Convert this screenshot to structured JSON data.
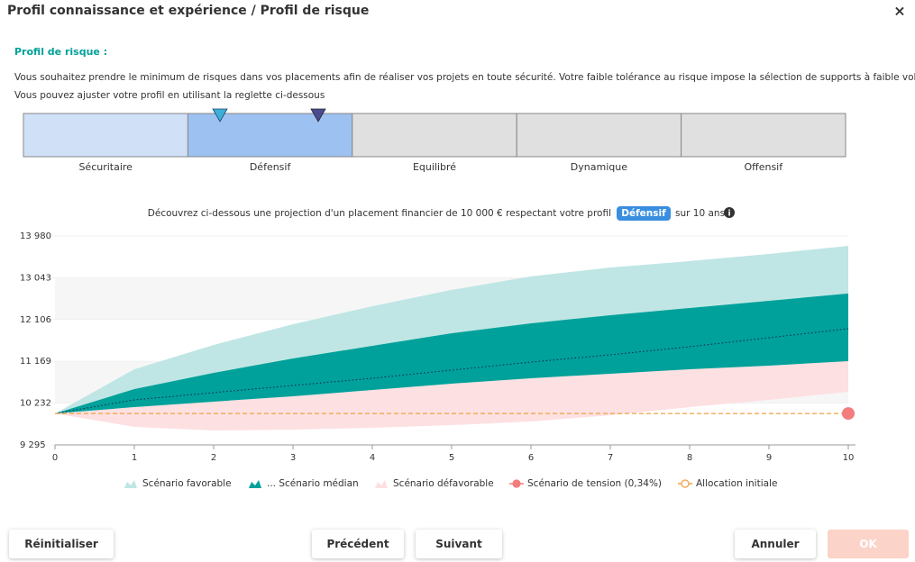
{
  "header": {
    "title": "Profil connaissance et expérience / Profil de risque",
    "close": "×"
  },
  "section": {
    "label": "Profil de risque :",
    "description": "Vous souhaitez prendre le minimum de risques dans vos placements afin de réaliser vos projets en toute sécurité. Votre faible tolérance au risque impose la sélection de supports à faible volatilité.",
    "hint": "Vous pouvez ajuster votre profil en utilisant la reglette ci-dessous"
  },
  "ruler": {
    "segments": [
      "Sécuritaire",
      "Défensif",
      "Equilibré",
      "Dynamique",
      "Offensif"
    ],
    "selected": 1
  },
  "projection": {
    "text": "Découvrez ci-dessous une projection d'un placement financier de 10 000 € respectant votre profil",
    "badge": "Défensif",
    "suffix": "sur 10 ans"
  },
  "chart_data": {
    "type": "area",
    "x": [
      0,
      1,
      2,
      3,
      4,
      5,
      6,
      7,
      8,
      9,
      10
    ],
    "xlim": [
      0,
      10
    ],
    "xticks": [
      0,
      1,
      2,
      3,
      4,
      5,
      6,
      7,
      8,
      9,
      10
    ],
    "ylim": [
      9295,
      13980
    ],
    "yticks": [
      {
        "value": 9295,
        "label": "9 295"
      },
      {
        "value": 10232,
        "label": "10 232"
      },
      {
        "value": 11169,
        "label": "11 169"
      },
      {
        "value": 12106,
        "label": "12 106"
      },
      {
        "value": 13043,
        "label": "13 043"
      },
      {
        "value": 13980,
        "label": "13 980"
      }
    ],
    "series": [
      {
        "name": "Scénario favorable",
        "color": "#bfe6e4",
        "values": [
          10000,
          10992,
          11537,
          12000,
          12406,
          12770,
          13073,
          13274,
          13416,
          13577,
          13759
        ]
      },
      {
        "name": "... Scénario médian",
        "color": "#00a19a",
        "upper": [
          10000,
          10547,
          10911,
          11234,
          11517,
          11800,
          12022,
          12204,
          12365,
          12527,
          12689
        ],
        "values": [
          10000,
          10305,
          10467,
          10628,
          10790,
          10972,
          11153,
          11315,
          11497,
          11699,
          11901
        ],
        "lower": [
          10000,
          10143,
          10265,
          10386,
          10527,
          10669,
          10790,
          10891,
          10992,
          11073,
          11174
        ]
      },
      {
        "name": "Scénario défavorable",
        "color": "#fde0e2",
        "values": [
          10000,
          9699,
          9618,
          9638,
          9679,
          9739,
          9820,
          9962,
          10143,
          10305,
          10487
        ]
      },
      {
        "name": "Scénario de tension (0,34%)",
        "color": "#f47c7c",
        "x": 10,
        "value": 10000
      },
      {
        "name": "Allocation initiale",
        "color": "#f0a040",
        "value": 10000
      }
    ]
  },
  "buttons": [
    "Réinitialiser",
    "Précédent",
    "Suivant",
    "Annuler",
    "OK"
  ]
}
